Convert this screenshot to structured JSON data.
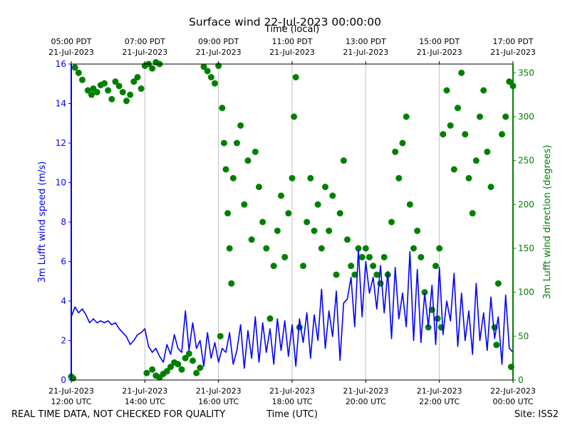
{
  "chart_data": {
    "type": "line+scatter",
    "title": "Surface wind 22-Jul-2023 00:00:00",
    "xlabel_bottom": "Time (UTC)",
    "xlabel_top": "Time (local)",
    "footer_left": "REAL TIME DATA, NOT CHECKED FOR QUALITY",
    "footer_right": "Site: ISS2",
    "x_range_hours_utc": [
      12,
      24
    ],
    "bottom_ticks": [
      {
        "hour": 12,
        "line1": "21-Jul-2023",
        "line2": "12:00 UTC"
      },
      {
        "hour": 14,
        "line1": "21-Jul-2023",
        "line2": "14:00 UTC"
      },
      {
        "hour": 16,
        "line1": "21-Jul-2023",
        "line2": "16:00 UTC"
      },
      {
        "hour": 18,
        "line1": "21-Jul-2023",
        "line2": "18:00 UTC"
      },
      {
        "hour": 20,
        "line1": "21-Jul-2023",
        "line2": "20:00 UTC"
      },
      {
        "hour": 22,
        "line1": "21-Jul-2023",
        "line2": "22:00 UTC"
      },
      {
        "hour": 24,
        "line1": "22-Jul-2023",
        "line2": "00:00 UTC"
      }
    ],
    "top_ticks": [
      {
        "hour": 12,
        "line1": "05:00 PDT",
        "line2": "21-Jul-2023"
      },
      {
        "hour": 14,
        "line1": "07:00 PDT",
        "line2": "21-Jul-2023"
      },
      {
        "hour": 16,
        "line1": "09:00 PDT",
        "line2": "21-Jul-2023"
      },
      {
        "hour": 18,
        "line1": "11:00 PDT",
        "line2": "21-Jul-2023"
      },
      {
        "hour": 20,
        "line1": "13:00 PDT",
        "line2": "21-Jul-2023"
      },
      {
        "hour": 22,
        "line1": "15:00 PDT",
        "line2": "21-Jul-2023"
      },
      {
        "hour": 24,
        "line1": "17:00 PDT",
        "line2": "21-Jul-2023"
      }
    ],
    "y_left": {
      "label": "3m Lufft wind speed (m/s)",
      "min": 0,
      "max": 16,
      "ticks": [
        0,
        2,
        4,
        6,
        8,
        10,
        12,
        14,
        16
      ],
      "color": "#0000ff"
    },
    "y_right": {
      "label": "3m Lufft wind direction (degrees)",
      "min": 0,
      "max": 360,
      "ticks": [
        0,
        50,
        100,
        150,
        200,
        250,
        300,
        350
      ],
      "color": "#008000"
    },
    "grid": "vertical lines at major x ticks",
    "series": [
      {
        "name": "wind speed",
        "axis": "left",
        "kind": "line",
        "color": "#0000ff",
        "points": [
          [
            12.0,
            3.2
          ],
          [
            12.1,
            3.7
          ],
          [
            12.2,
            3.4
          ],
          [
            12.3,
            3.6
          ],
          [
            12.4,
            3.3
          ],
          [
            12.5,
            2.9
          ],
          [
            12.6,
            3.1
          ],
          [
            12.7,
            2.9
          ],
          [
            12.8,
            3.0
          ],
          [
            12.9,
            2.9
          ],
          [
            13.0,
            3.0
          ],
          [
            13.1,
            2.8
          ],
          [
            13.2,
            2.9
          ],
          [
            13.3,
            2.6
          ],
          [
            13.4,
            2.4
          ],
          [
            13.5,
            2.2
          ],
          [
            13.6,
            1.8
          ],
          [
            13.7,
            2.0
          ],
          [
            13.8,
            2.3
          ],
          [
            13.9,
            2.4
          ],
          [
            14.0,
            2.6
          ],
          [
            14.1,
            1.7
          ],
          [
            14.2,
            1.4
          ],
          [
            14.3,
            1.6
          ],
          [
            14.4,
            1.2
          ],
          [
            14.5,
            0.9
          ],
          [
            14.6,
            1.8
          ],
          [
            14.7,
            1.3
          ],
          [
            14.8,
            2.3
          ],
          [
            14.9,
            1.6
          ],
          [
            15.0,
            1.4
          ],
          [
            15.1,
            3.5
          ],
          [
            15.2,
            1.5
          ],
          [
            15.3,
            2.9
          ],
          [
            15.4,
            1.6
          ],
          [
            15.5,
            2.0
          ],
          [
            15.6,
            0.7
          ],
          [
            15.7,
            2.4
          ],
          [
            15.8,
            1.1
          ],
          [
            15.9,
            1.9
          ],
          [
            16.0,
            0.9
          ],
          [
            16.1,
            1.6
          ],
          [
            16.2,
            1.4
          ],
          [
            16.3,
            2.4
          ],
          [
            16.4,
            0.8
          ],
          [
            16.5,
            1.5
          ],
          [
            16.6,
            2.8
          ],
          [
            16.7,
            0.6
          ],
          [
            16.8,
            2.5
          ],
          [
            16.9,
            1.1
          ],
          [
            17.0,
            3.2
          ],
          [
            17.1,
            0.9
          ],
          [
            17.2,
            2.9
          ],
          [
            17.3,
            1.4
          ],
          [
            17.4,
            2.6
          ],
          [
            17.5,
            0.8
          ],
          [
            17.6,
            3.1
          ],
          [
            17.7,
            1.5
          ],
          [
            17.8,
            3.0
          ],
          [
            17.9,
            1.2
          ],
          [
            18.0,
            2.8
          ],
          [
            18.1,
            0.7
          ],
          [
            18.2,
            3.1
          ],
          [
            18.3,
            1.9
          ],
          [
            18.4,
            3.4
          ],
          [
            18.5,
            1.1
          ],
          [
            18.6,
            3.3
          ],
          [
            18.7,
            2.0
          ],
          [
            18.8,
            4.6
          ],
          [
            18.9,
            1.6
          ],
          [
            19.0,
            3.5
          ],
          [
            19.1,
            2.2
          ],
          [
            19.2,
            4.5
          ],
          [
            19.3,
            1.0
          ],
          [
            19.4,
            3.9
          ],
          [
            19.5,
            4.1
          ],
          [
            19.6,
            5.2
          ],
          [
            19.7,
            2.7
          ],
          [
            19.8,
            6.6
          ],
          [
            19.9,
            3.2
          ],
          [
            20.0,
            6.0
          ],
          [
            20.1,
            4.4
          ],
          [
            20.2,
            5.2
          ],
          [
            20.3,
            3.6
          ],
          [
            20.4,
            5.8
          ],
          [
            20.5,
            3.4
          ],
          [
            20.6,
            5.5
          ],
          [
            20.7,
            2.1
          ],
          [
            20.8,
            5.7
          ],
          [
            20.9,
            3.1
          ],
          [
            21.0,
            4.4
          ],
          [
            21.1,
            2.7
          ],
          [
            21.2,
            6.5
          ],
          [
            21.3,
            2.0
          ],
          [
            21.4,
            5.6
          ],
          [
            21.5,
            1.9
          ],
          [
            21.6,
            4.4
          ],
          [
            21.7,
            2.7
          ],
          [
            21.8,
            4.8
          ],
          [
            21.9,
            1.8
          ],
          [
            22.0,
            5.7
          ],
          [
            22.1,
            2.3
          ],
          [
            22.2,
            4.0
          ],
          [
            22.3,
            3.0
          ],
          [
            22.4,
            5.4
          ],
          [
            22.5,
            1.7
          ],
          [
            22.6,
            4.4
          ],
          [
            22.7,
            2.0
          ],
          [
            22.8,
            3.5
          ],
          [
            22.9,
            1.3
          ],
          [
            23.0,
            4.9
          ],
          [
            23.1,
            2.0
          ],
          [
            23.2,
            3.4
          ],
          [
            23.3,
            1.5
          ],
          [
            23.4,
            4.2
          ],
          [
            23.5,
            2.1
          ],
          [
            23.6,
            3.2
          ],
          [
            23.7,
            0.8
          ],
          [
            23.8,
            4.3
          ],
          [
            23.9,
            1.6
          ],
          [
            24.0,
            1.4
          ]
        ]
      },
      {
        "name": "wind direction",
        "axis": "right",
        "kind": "scatter",
        "color": "#008000",
        "points": [
          [
            12.0,
            4
          ],
          [
            12.05,
            2
          ],
          [
            12.1,
            356
          ],
          [
            12.2,
            350
          ],
          [
            12.3,
            342
          ],
          [
            12.45,
            330
          ],
          [
            12.55,
            325
          ],
          [
            12.6,
            332
          ],
          [
            12.7,
            328
          ],
          [
            12.8,
            336
          ],
          [
            12.9,
            338
          ],
          [
            13.0,
            330
          ],
          [
            13.1,
            320
          ],
          [
            13.2,
            340
          ],
          [
            13.3,
            335
          ],
          [
            13.4,
            328
          ],
          [
            13.5,
            318
          ],
          [
            13.6,
            325
          ],
          [
            13.7,
            340
          ],
          [
            13.8,
            345
          ],
          [
            13.9,
            332
          ],
          [
            14.0,
            358
          ],
          [
            14.1,
            360
          ],
          [
            14.2,
            355
          ],
          [
            14.3,
            362
          ],
          [
            14.4,
            360
          ],
          [
            14.05,
            8
          ],
          [
            14.2,
            12
          ],
          [
            14.3,
            5
          ],
          [
            14.4,
            3
          ],
          [
            14.5,
            7
          ],
          [
            14.6,
            10
          ],
          [
            14.7,
            15
          ],
          [
            14.8,
            20
          ],
          [
            14.9,
            18
          ],
          [
            15.0,
            12
          ],
          [
            15.1,
            25
          ],
          [
            15.2,
            30
          ],
          [
            15.3,
            22
          ],
          [
            15.4,
            8
          ],
          [
            15.5,
            14
          ],
          [
            15.6,
            357
          ],
          [
            15.7,
            352
          ],
          [
            15.8,
            345
          ],
          [
            15.9,
            338
          ],
          [
            16.0,
            358
          ],
          [
            16.05,
            50
          ],
          [
            16.1,
            310
          ],
          [
            16.15,
            270
          ],
          [
            16.2,
            240
          ],
          [
            16.25,
            190
          ],
          [
            16.3,
            150
          ],
          [
            16.35,
            110
          ],
          [
            16.4,
            230
          ],
          [
            16.5,
            270
          ],
          [
            16.6,
            290
          ],
          [
            16.7,
            200
          ],
          [
            16.8,
            250
          ],
          [
            16.9,
            160
          ],
          [
            17.0,
            260
          ],
          [
            17.1,
            220
          ],
          [
            17.2,
            180
          ],
          [
            17.3,
            150
          ],
          [
            17.4,
            70
          ],
          [
            17.5,
            130
          ],
          [
            17.6,
            170
          ],
          [
            17.7,
            210
          ],
          [
            17.8,
            140
          ],
          [
            17.9,
            190
          ],
          [
            18.0,
            230
          ],
          [
            18.05,
            300
          ],
          [
            18.1,
            345
          ],
          [
            18.2,
            60
          ],
          [
            18.3,
            130
          ],
          [
            18.4,
            180
          ],
          [
            18.5,
            230
          ],
          [
            18.6,
            170
          ],
          [
            18.7,
            200
          ],
          [
            18.8,
            150
          ],
          [
            18.9,
            220
          ],
          [
            19.0,
            170
          ],
          [
            19.1,
            210
          ],
          [
            19.2,
            120
          ],
          [
            19.3,
            190
          ],
          [
            19.4,
            250
          ],
          [
            19.5,
            160
          ],
          [
            19.6,
            130
          ],
          [
            19.7,
            120
          ],
          [
            19.8,
            150
          ],
          [
            19.9,
            140
          ],
          [
            20.0,
            150
          ],
          [
            20.1,
            140
          ],
          [
            20.2,
            130
          ],
          [
            20.3,
            120
          ],
          [
            20.4,
            110
          ],
          [
            20.5,
            140
          ],
          [
            20.6,
            120
          ],
          [
            20.7,
            180
          ],
          [
            20.8,
            260
          ],
          [
            20.9,
            230
          ],
          [
            21.0,
            270
          ],
          [
            21.1,
            300
          ],
          [
            21.2,
            200
          ],
          [
            21.3,
            150
          ],
          [
            21.4,
            170
          ],
          [
            21.5,
            140
          ],
          [
            21.6,
            100
          ],
          [
            21.7,
            60
          ],
          [
            21.8,
            80
          ],
          [
            21.9,
            130
          ],
          [
            22.0,
            150
          ],
          [
            22.1,
            280
          ],
          [
            22.2,
            330
          ],
          [
            22.3,
            290
          ],
          [
            22.4,
            240
          ],
          [
            22.5,
            310
          ],
          [
            22.6,
            350
          ],
          [
            22.7,
            280
          ],
          [
            22.8,
            230
          ],
          [
            22.9,
            190
          ],
          [
            23.0,
            250
          ],
          [
            23.1,
            300
          ],
          [
            23.2,
            330
          ],
          [
            23.3,
            260
          ],
          [
            23.4,
            220
          ],
          [
            23.5,
            60
          ],
          [
            23.6,
            110
          ],
          [
            23.7,
            280
          ],
          [
            23.8,
            300
          ],
          [
            23.9,
            340
          ],
          [
            24.0,
            335
          ],
          [
            23.55,
            40
          ],
          [
            22.05,
            60
          ],
          [
            21.95,
            70
          ],
          [
            23.95,
            15
          ]
        ]
      }
    ]
  }
}
